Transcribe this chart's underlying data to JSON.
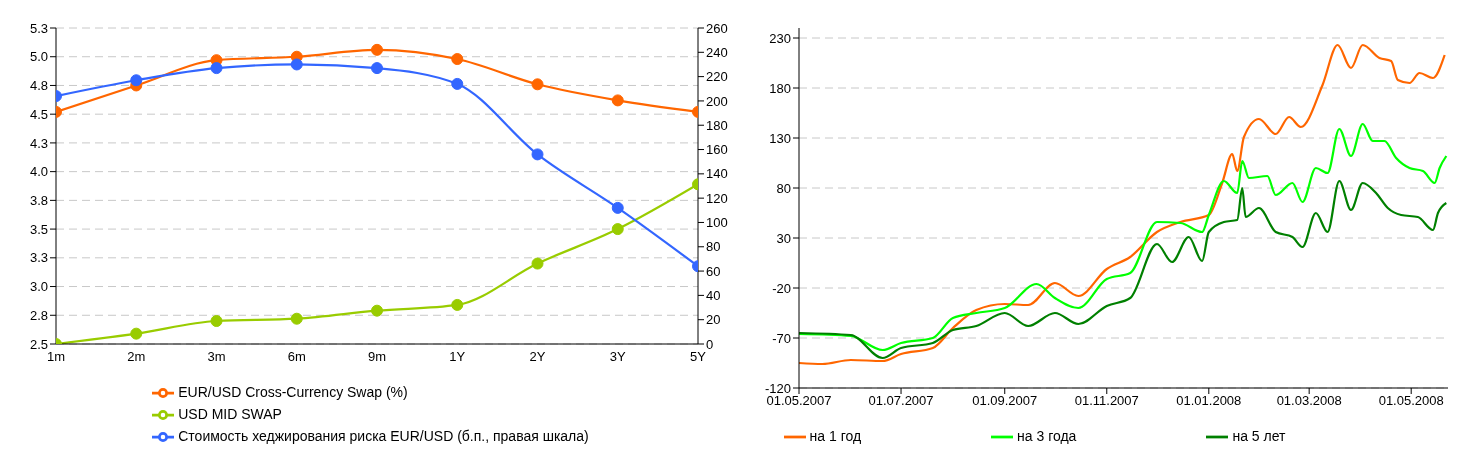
{
  "chart_data": [
    {
      "type": "line",
      "categories": [
        "1m",
        "2m",
        "3m",
        "6m",
        "9m",
        "1Y",
        "2Y",
        "3Y",
        "5Y"
      ],
      "series": [
        {
          "name": "EUR/USD Cross-Currency Swap (%)",
          "color": "#ff6600",
          "values": [
            4.52,
            4.75,
            4.97,
            5.0,
            5.06,
            4.98,
            4.76,
            4.62,
            4.52
          ]
        },
        {
          "name": "USD MID SWAP",
          "color": "#99cc00",
          "values": [
            2.5,
            2.59,
            2.7,
            2.72,
            2.79,
            2.84,
            3.2,
            3.5,
            3.89
          ]
        },
        {
          "name": "Стоимость хеджирования риска EUR/USD (б.п., правая шкала)",
          "color": "#3366ff",
          "axis": "y2",
          "values": [
            204,
            217,
            227,
            230,
            227,
            214,
            156,
            112,
            64
          ]
        }
      ],
      "ylim": [
        2.5,
        5.25
      ],
      "yticks": [
        2.5,
        {
          "value": 2.75,
          "label": "2.8"
        },
        {
          "value": 3,
          "label": "3.0"
        },
        {
          "value": 3.25,
          "label": "3.3"
        },
        3.5,
        {
          "value": 3.75,
          "label": "3.8"
        },
        {
          "value": 4,
          "label": "4.0"
        },
        {
          "value": 4.25,
          "label": "4.3"
        },
        4.5,
        {
          "value": 4.75,
          "label": "4.8"
        },
        {
          "value": 5,
          "label": "5.0"
        },
        {
          "value": 5.25,
          "label": "5.3"
        }
      ],
      "y2lim": [
        0,
        260
      ],
      "y2ticks": [
        0,
        20,
        40,
        60,
        80,
        100,
        120,
        140,
        160,
        180,
        200,
        220,
        240,
        260
      ],
      "grid": "y",
      "legend": "bottom",
      "marker": "circle"
    },
    {
      "type": "line",
      "series": [
        {
          "name": "на 1 год",
          "color": "#ff6600",
          "x": [
            "2007-05-01",
            "2007-05-15",
            "2007-06-01",
            "2007-06-20",
            "2007-07-01",
            "2007-07-20",
            "2007-08-01",
            "2007-08-15",
            "2007-09-01",
            "2007-09-15",
            "2007-10-01",
            "2007-10-15",
            "2007-11-01",
            "2007-11-15",
            "2007-12-01",
            "2007-12-15",
            "2008-01-01",
            "2008-01-09",
            "2008-01-15",
            "2008-01-18",
            "2008-01-22",
            "2008-01-31",
            "2008-02-10",
            "2008-02-18",
            "2008-02-25",
            "2008-03-09",
            "2008-03-18",
            "2008-03-26",
            "2008-04-02",
            "2008-04-12",
            "2008-04-19",
            "2008-04-23",
            "2008-04-30",
            "2008-05-06",
            "2008-05-14",
            "2008-05-21"
          ],
          "values": [
            -95,
            -96,
            -92,
            -93,
            -86,
            -80,
            -60,
            -42,
            -36,
            -37,
            -15,
            -28,
            -1,
            11,
            36,
            46,
            53,
            85,
            114,
            97,
            131,
            149,
            134,
            151,
            141,
            183,
            223,
            200,
            223,
            210,
            207,
            188,
            185,
            195,
            190,
            213
          ]
        },
        {
          "name": "на 3 года",
          "color": "#00ff00",
          "x": [
            "2007-05-01",
            "2007-06-01",
            "2007-06-20",
            "2007-07-01",
            "2007-07-20",
            "2007-08-01",
            "2007-08-15",
            "2007-09-01",
            "2007-09-20",
            "2007-10-01",
            "2007-10-15",
            "2007-11-01",
            "2007-11-15",
            "2007-12-01",
            "2007-12-15",
            "2007-12-28",
            "2008-01-01",
            "2008-01-10",
            "2008-01-18",
            "2008-01-21",
            "2008-01-25",
            "2008-02-05",
            "2008-02-10",
            "2008-02-20",
            "2008-02-26",
            "2008-03-05",
            "2008-03-12",
            "2008-03-19",
            "2008-03-26",
            "2008-04-02",
            "2008-04-08",
            "2008-04-15",
            "2008-04-22",
            "2008-04-30",
            "2008-05-08",
            "2008-05-15",
            "2008-05-18",
            "2008-05-22"
          ],
          "values": [
            -66,
            -68,
            -82,
            -75,
            -70,
            -50,
            -45,
            -40,
            -16,
            -30,
            -40,
            -11,
            -5,
            46,
            45,
            36,
            53,
            87,
            75,
            107,
            90,
            92,
            73,
            85,
            66,
            100,
            95,
            139,
            112,
            144,
            127,
            127,
            110,
            100,
            97,
            85,
            100,
            112
          ]
        },
        {
          "name": "на 5 лет",
          "color": "#008000",
          "x": [
            "2007-05-01",
            "2007-06-01",
            "2007-06-20",
            "2007-07-01",
            "2007-07-20",
            "2007-08-01",
            "2007-08-15",
            "2007-09-01",
            "2007-09-15",
            "2007-10-01",
            "2007-10-15",
            "2007-11-01",
            "2007-11-15",
            "2007-12-01",
            "2007-12-10",
            "2007-12-20",
            "2007-12-28",
            "2008-01-01",
            "2008-01-10",
            "2008-01-18",
            "2008-01-21",
            "2008-01-23",
            "2008-01-31",
            "2008-02-10",
            "2008-02-20",
            "2008-02-26",
            "2008-03-05",
            "2008-03-12",
            "2008-03-19",
            "2008-03-26",
            "2008-04-02",
            "2008-04-10",
            "2008-04-17",
            "2008-04-25",
            "2008-05-05",
            "2008-05-14",
            "2008-05-17",
            "2008-05-22"
          ],
          "values": [
            -65,
            -67,
            -90,
            -80,
            -75,
            -62,
            -58,
            -45,
            -58,
            -45,
            -56,
            -38,
            -30,
            24,
            6,
            31,
            7,
            36,
            46,
            48,
            80,
            51,
            60,
            36,
            31,
            21,
            55,
            36,
            87,
            58,
            85,
            75,
            60,
            53,
            51,
            38,
            55,
            65
          ]
        }
      ],
      "xlim": [
        "2007-05-01",
        "2008-05-23"
      ],
      "xticks": [
        {
          "value": "2007-05-01",
          "label": "01.05.2007"
        },
        {
          "value": "2007-07-01",
          "label": "01.07.2007"
        },
        {
          "value": "2007-09-01",
          "label": "01.09.2007"
        },
        {
          "value": "2007-11-01",
          "label": "01.11.2007"
        },
        {
          "value": "2008-01-01",
          "label": "01.01.2008"
        },
        {
          "value": "2008-03-01",
          "label": "01.03.2008"
        },
        {
          "value": "2008-05-01",
          "label": "01.05.2008"
        }
      ],
      "ylim": [
        -120,
        240
      ],
      "yticks": [
        -120,
        -70,
        -20,
        30,
        80,
        130,
        180,
        230
      ],
      "grid": "y",
      "legend": "bottom"
    }
  ]
}
